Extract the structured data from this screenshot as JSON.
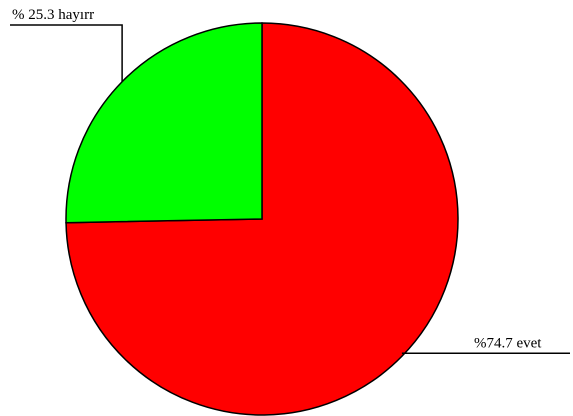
{
  "chart_data": {
    "type": "pie",
    "categories": [
      "evet",
      "hayırr"
    ],
    "values": [
      74.7,
      25.3
    ],
    "value_labels": [
      "%74.7 evet",
      "% 25.3 hayırr"
    ],
    "colors": [
      "#ff0000",
      "#00ff00"
    ]
  }
}
